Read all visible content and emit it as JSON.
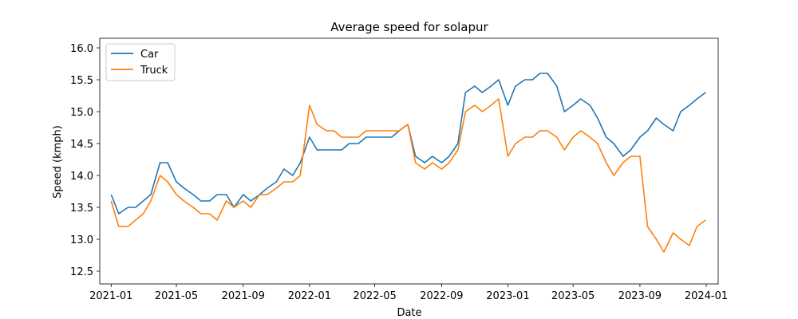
{
  "chart_data": {
    "type": "line",
    "title": "Average speed for solapur",
    "xlabel": "Date",
    "ylabel": "Speed (kmph)",
    "xlim": [
      "2020-12-11",
      "2024-01-23"
    ],
    "ylim": [
      12.3,
      16.15
    ],
    "x_ticks": [
      "2021-01-01",
      "2021-05-01",
      "2021-09-01",
      "2022-01-01",
      "2022-05-01",
      "2022-09-01",
      "2023-01-01",
      "2023-05-01",
      "2023-09-01",
      "2024-01-01"
    ],
    "x_tick_labels": [
      "2021-01",
      "2021-05",
      "2021-09",
      "2022-01",
      "2022-05",
      "2022-09",
      "2023-01",
      "2023-05",
      "2023-09",
      "2024-01"
    ],
    "y_ticks": [
      12.5,
      13.0,
      13.5,
      14.0,
      14.5,
      15.0,
      15.5,
      16.0
    ],
    "y_tick_labels": [
      "12.5",
      "13.0",
      "13.5",
      "14.0",
      "14.5",
      "15.0",
      "15.5",
      "16.0"
    ],
    "legend_position": "upper-left",
    "grid": false,
    "series": [
      {
        "name": "Car",
        "color": "#1f77b4",
        "x": [
          "2021-01-01",
          "2021-01-15",
          "2021-02-01",
          "2021-02-15",
          "2021-03-01",
          "2021-03-15",
          "2021-04-01",
          "2021-04-15",
          "2021-05-01",
          "2021-05-15",
          "2021-06-01",
          "2021-06-15",
          "2021-07-01",
          "2021-07-15",
          "2021-08-01",
          "2021-08-15",
          "2021-09-01",
          "2021-09-15",
          "2021-10-01",
          "2021-10-15",
          "2021-11-01",
          "2021-11-15",
          "2021-12-01",
          "2021-12-15",
          "2022-01-01",
          "2022-01-15",
          "2022-02-01",
          "2022-02-15",
          "2022-03-01",
          "2022-03-15",
          "2022-04-01",
          "2022-04-15",
          "2022-05-01",
          "2022-05-15",
          "2022-06-01",
          "2022-06-15",
          "2022-07-01",
          "2022-07-15",
          "2022-08-01",
          "2022-08-15",
          "2022-09-01",
          "2022-09-15",
          "2022-10-01",
          "2022-10-15",
          "2022-11-01",
          "2022-11-15",
          "2022-12-01",
          "2022-12-15",
          "2023-01-01",
          "2023-01-15",
          "2023-02-01",
          "2023-02-15",
          "2023-03-01",
          "2023-03-15",
          "2023-04-01",
          "2023-04-15",
          "2023-05-01",
          "2023-05-15",
          "2023-06-01",
          "2023-06-15",
          "2023-07-01",
          "2023-07-15",
          "2023-08-01",
          "2023-08-15",
          "2023-09-01",
          "2023-09-15",
          "2023-10-01",
          "2023-10-15",
          "2023-11-01",
          "2023-11-15",
          "2023-12-01",
          "2023-12-15",
          "2023-12-31"
        ],
        "y": [
          13.7,
          13.4,
          13.5,
          13.5,
          13.6,
          13.7,
          14.2,
          14.2,
          13.9,
          13.8,
          13.7,
          13.6,
          13.6,
          13.7,
          13.7,
          13.5,
          13.7,
          13.6,
          13.7,
          13.8,
          13.9,
          14.1,
          14.0,
          14.2,
          14.6,
          14.4,
          14.4,
          14.4,
          14.4,
          14.5,
          14.5,
          14.6,
          14.6,
          14.6,
          14.6,
          14.7,
          14.8,
          14.3,
          14.2,
          14.3,
          14.2,
          14.3,
          14.5,
          15.3,
          15.4,
          15.3,
          15.4,
          15.5,
          15.1,
          15.4,
          15.5,
          15.5,
          15.6,
          15.6,
          15.4,
          15.0,
          15.1,
          15.2,
          15.1,
          14.9,
          14.6,
          14.5,
          14.3,
          14.4,
          14.6,
          14.7,
          14.9,
          14.8,
          14.7,
          15.0,
          15.1,
          15.2,
          15.3
        ]
      },
      {
        "name": "Truck",
        "color": "#ff7f0e",
        "x": [
          "2021-01-01",
          "2021-01-15",
          "2021-02-01",
          "2021-02-15",
          "2021-03-01",
          "2021-03-15",
          "2021-04-01",
          "2021-04-15",
          "2021-05-01",
          "2021-05-15",
          "2021-06-01",
          "2021-06-15",
          "2021-07-01",
          "2021-07-15",
          "2021-08-01",
          "2021-08-15",
          "2021-09-01",
          "2021-09-15",
          "2021-10-01",
          "2021-10-15",
          "2021-11-01",
          "2021-11-15",
          "2021-12-01",
          "2021-12-15",
          "2022-01-01",
          "2022-01-15",
          "2022-02-01",
          "2022-02-15",
          "2022-03-01",
          "2022-03-15",
          "2022-04-01",
          "2022-04-15",
          "2022-05-01",
          "2022-05-15",
          "2022-06-01",
          "2022-06-15",
          "2022-07-01",
          "2022-07-15",
          "2022-08-01",
          "2022-08-15",
          "2022-09-01",
          "2022-09-15",
          "2022-10-01",
          "2022-10-15",
          "2022-11-01",
          "2022-11-15",
          "2022-12-01",
          "2022-12-15",
          "2023-01-01",
          "2023-01-15",
          "2023-02-01",
          "2023-02-15",
          "2023-03-01",
          "2023-03-15",
          "2023-04-01",
          "2023-04-15",
          "2023-05-01",
          "2023-05-15",
          "2023-06-01",
          "2023-06-15",
          "2023-07-01",
          "2023-07-15",
          "2023-08-01",
          "2023-08-15",
          "2023-09-01",
          "2023-09-15",
          "2023-10-01",
          "2023-10-15",
          "2023-11-01",
          "2023-11-15",
          "2023-12-01",
          "2023-12-15",
          "2023-12-31"
        ],
        "y": [
          13.6,
          13.2,
          13.2,
          13.3,
          13.4,
          13.6,
          14.0,
          13.9,
          13.7,
          13.6,
          13.5,
          13.4,
          13.4,
          13.3,
          13.6,
          13.5,
          13.6,
          13.5,
          13.7,
          13.7,
          13.8,
          13.9,
          13.9,
          14.0,
          15.1,
          14.8,
          14.7,
          14.7,
          14.6,
          14.6,
          14.6,
          14.7,
          14.7,
          14.7,
          14.7,
          14.7,
          14.8,
          14.2,
          14.1,
          14.2,
          14.1,
          14.2,
          14.4,
          15.0,
          15.1,
          15.0,
          15.1,
          15.2,
          14.3,
          14.5,
          14.6,
          14.6,
          14.7,
          14.7,
          14.6,
          14.4,
          14.6,
          14.7,
          14.6,
          14.5,
          14.2,
          14.0,
          14.2,
          14.3,
          14.3,
          13.2,
          13.0,
          12.8,
          13.1,
          13.0,
          12.9,
          13.2,
          13.3
        ]
      }
    ]
  }
}
